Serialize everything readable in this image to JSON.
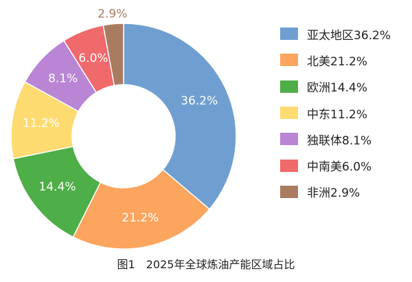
{
  "caption": "图1　2025年全球炼油产能区域占比",
  "chart_data": {
    "type": "pie",
    "variant": "donut",
    "title": "图1　2025年全球炼油产能区域占比",
    "unit": "%",
    "legend_position": "right",
    "slices": [
      {
        "name": "亚太地区",
        "value": 36.2,
        "label": "36.2%",
        "legend": "亚太地区36.2%",
        "color": "#6f9fd1"
      },
      {
        "name": "北美",
        "value": 21.2,
        "label": "21.2%",
        "legend": "北美21.2%",
        "color": "#fca55e"
      },
      {
        "name": "欧洲",
        "value": 14.4,
        "label": "14.4%",
        "legend": "欧洲14.4%",
        "color": "#4eae47"
      },
      {
        "name": "中东",
        "value": 11.2,
        "label": "11.2%",
        "legend": "中东11.2%",
        "color": "#fddb71"
      },
      {
        "name": "独联体",
        "value": 8.1,
        "label": "8.1%",
        "legend": "独联体8.1%",
        "color": "#b985d4"
      },
      {
        "name": "中南美",
        "value": 6.0,
        "label": "6.0%",
        "legend": "中南美6.0%",
        "color": "#f0696b"
      },
      {
        "name": "非洲",
        "value": 2.9,
        "label": "2.9%",
        "legend": "非洲2.9%",
        "color": "#a97c62"
      }
    ]
  }
}
